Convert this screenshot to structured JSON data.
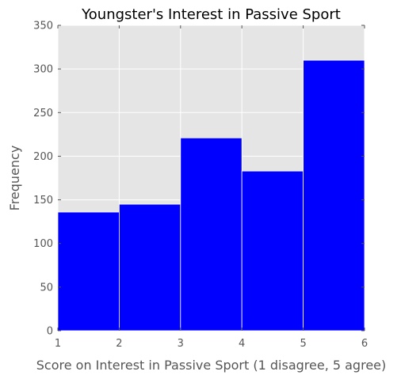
{
  "chart_data": {
    "type": "bar",
    "title": "Youngster's Interest in Passive Sport",
    "xlabel": "Score on Interest in Passive Sport (1 disagree, 5 agree)",
    "ylabel": "Frequency",
    "bins": [
      {
        "x0": 1,
        "x1": 2,
        "value": 136
      },
      {
        "x0": 2,
        "x1": 3,
        "value": 145
      },
      {
        "x0": 3,
        "x1": 4,
        "value": 221
      },
      {
        "x0": 4,
        "x1": 5,
        "value": 183
      },
      {
        "x0": 5,
        "x1": 6,
        "value": 310
      }
    ],
    "xlim": [
      1,
      6
    ],
    "ylim": [
      0,
      350
    ],
    "xticks": [
      1,
      2,
      3,
      4,
      5,
      6
    ],
    "yticks": [
      0,
      50,
      100,
      150,
      200,
      250,
      300,
      350
    ],
    "grid": true,
    "bar_color": "#0000ff",
    "plot_background": "#e5e5e5",
    "grid_color": "#ffffff"
  }
}
